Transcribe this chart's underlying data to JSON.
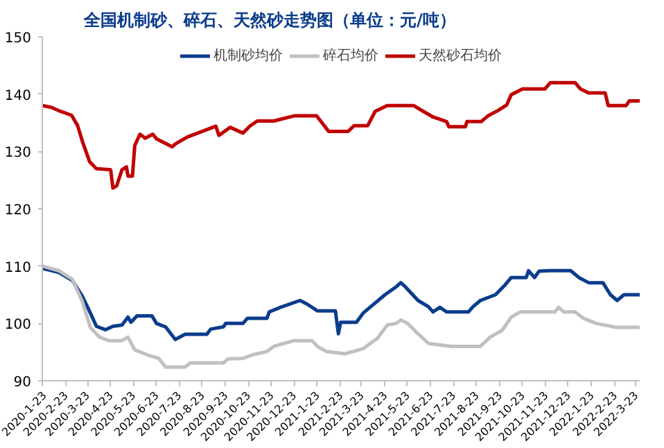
{
  "chart_data": {
    "type": "line",
    "title": "全国机制砂、碎石、天然砂走势图（单位：元/吨）",
    "ylim": [
      90,
      150
    ],
    "yticks": [
      90,
      100,
      110,
      120,
      130,
      140,
      150
    ],
    "xlim": [
      "2020-01-23",
      "2022-03-28"
    ],
    "xticks": [
      {
        "value": "2020-01-23",
        "label": "2020-1-23"
      },
      {
        "value": "2020-02-23",
        "label": "2020-2-23"
      },
      {
        "value": "2020-03-23",
        "label": "2020-3-23"
      },
      {
        "value": "2020-04-23",
        "label": "2020-4-23"
      },
      {
        "value": "2020-05-23",
        "label": "2020-5-23"
      },
      {
        "value": "2020-06-23",
        "label": "2020-6-23"
      },
      {
        "value": "2020-07-23",
        "label": "2020-7-23"
      },
      {
        "value": "2020-08-23",
        "label": "2020-8-23"
      },
      {
        "value": "2020-09-23",
        "label": "2020-9-23"
      },
      {
        "value": "2020-10-23",
        "label": "2020-10-23"
      },
      {
        "value": "2020-11-23",
        "label": "2020-11-23"
      },
      {
        "value": "2020-12-23",
        "label": "2020-12-23"
      },
      {
        "value": "2021-01-23",
        "label": "2021-1-23"
      },
      {
        "value": "2021-02-23",
        "label": "2021-2-23"
      },
      {
        "value": "2021-03-23",
        "label": "2021-3-23"
      },
      {
        "value": "2021-04-23",
        "label": "2021-4-23"
      },
      {
        "value": "2021-05-23",
        "label": "2021-5-23"
      },
      {
        "value": "2021-06-23",
        "label": "2021-6-23"
      },
      {
        "value": "2021-07-23",
        "label": "2021-7-23"
      },
      {
        "value": "2021-08-23",
        "label": "2021-8-23"
      },
      {
        "value": "2021-09-23",
        "label": "2021-9-23"
      },
      {
        "value": "2021-10-23",
        "label": "2021-10-23"
      },
      {
        "value": "2021-11-23",
        "label": "2021-11-23"
      },
      {
        "value": "2021-12-23",
        "label": "2021-12-23"
      },
      {
        "value": "2022-01-23",
        "label": "2022-1-23"
      },
      {
        "value": "2022-02-23",
        "label": "2022-2-23"
      },
      {
        "value": "2022-03-23",
        "label": "2022-3-23"
      }
    ],
    "grid": false,
    "legend": "top",
    "marker": "none",
    "line_style": "solid",
    "series": [
      {
        "name": "机制砂均价",
        "color": "#0b3c8c",
        "x": [
          "2020-01-23",
          "2020-02-14",
          "2020-03-03",
          "2020-03-16",
          "2020-03-27",
          "2020-04-04",
          "2020-04-16",
          "2020-04-26",
          "2020-05-08",
          "2020-05-16",
          "2020-05-20",
          "2020-05-28",
          "2020-06-17",
          "2020-06-23",
          "2020-07-05",
          "2020-07-18",
          "2020-07-31",
          "2020-08-29",
          "2020-09-03",
          "2020-09-20",
          "2020-09-23",
          "2020-10-16",
          "2020-10-22",
          "2020-11-17",
          "2020-11-20",
          "2020-12-05",
          "2020-12-31",
          "2021-01-09",
          "2021-01-23",
          "2021-02-16",
          "2021-02-20",
          "2021-02-23",
          "2021-03-16",
          "2021-03-25",
          "2021-04-13",
          "2021-04-23",
          "2021-05-08",
          "2021-05-14",
          "2021-05-20",
          "2021-06-06",
          "2021-06-20",
          "2021-06-26",
          "2021-07-05",
          "2021-07-14",
          "2021-08-12",
          "2021-08-18",
          "2021-08-28",
          "2021-09-17",
          "2021-09-29",
          "2021-10-08",
          "2021-10-28",
          "2021-10-31",
          "2021-11-08",
          "2021-11-14",
          "2021-11-29",
          "2021-12-26",
          "2022-01-06",
          "2022-01-19",
          "2022-02-07",
          "2022-02-17",
          "2022-02-26",
          "2022-03-07",
          "2022-03-28"
        ],
        "values": [
          109.6,
          108.9,
          107.5,
          104.8,
          101.8,
          99.5,
          98.9,
          99.5,
          99.7,
          101.1,
          100.2,
          101.3,
          101.3,
          100,
          99.4,
          97.2,
          98.1,
          98.1,
          99,
          99.4,
          100,
          100,
          100.9,
          100.9,
          102,
          102.8,
          104,
          103.4,
          102.2,
          102.2,
          98.2,
          100.2,
          100.2,
          101.8,
          103.9,
          105,
          106.4,
          107.1,
          106.4,
          104,
          102.9,
          102,
          102.8,
          102,
          102,
          102.9,
          104,
          105,
          106.6,
          108,
          108,
          109.2,
          108,
          109.1,
          109.2,
          109.2,
          108,
          107.1,
          107.1,
          105,
          104,
          105,
          105
        ]
      },
      {
        "name": "碎石均价",
        "color": "#c0c0c0",
        "x": [
          "2020-01-23",
          "2020-02-14",
          "2020-03-03",
          "2020-03-16",
          "2020-03-27",
          "2020-04-08",
          "2020-04-20",
          "2020-05-08",
          "2020-05-16",
          "2020-05-25",
          "2020-06-11",
          "2020-06-26",
          "2020-07-05",
          "2020-07-31",
          "2020-08-07",
          "2020-09-20",
          "2020-09-26",
          "2020-10-16",
          "2020-10-28",
          "2020-11-17",
          "2020-11-26",
          "2020-12-23",
          "2021-01-16",
          "2021-01-23",
          "2021-02-04",
          "2021-03-01",
          "2021-03-25",
          "2021-04-13",
          "2021-04-26",
          "2021-05-08",
          "2021-05-14",
          "2021-05-23",
          "2021-06-06",
          "2021-06-20",
          "2021-07-20",
          "2021-08-28",
          "2021-09-10",
          "2021-09-26",
          "2021-10-08",
          "2021-10-20",
          "2021-12-05",
          "2021-12-10",
          "2021-12-17",
          "2022-01-01",
          "2022-01-12",
          "2022-01-29",
          "2022-02-25",
          "2022-03-28"
        ],
        "values": [
          110,
          109.2,
          107.7,
          103.9,
          99.3,
          97.6,
          97,
          97,
          97.6,
          95.4,
          94.5,
          93.9,
          92.4,
          92.4,
          93.1,
          93.1,
          93.8,
          93.9,
          94.5,
          95.1,
          96,
          97,
          97,
          96,
          95.1,
          94.7,
          95.6,
          97.4,
          99.7,
          100,
          100.6,
          100,
          98.2,
          96.5,
          96,
          96,
          97.6,
          98.8,
          101.1,
          102,
          102,
          102.8,
          102,
          102,
          100.9,
          100,
          99.3,
          99.3
        ]
      },
      {
        "name": "天然砂石均价",
        "color": "#c00000",
        "x": [
          "2020-01-23",
          "2020-02-04",
          "2020-02-16",
          "2020-03-02",
          "2020-03-10",
          "2020-03-17",
          "2020-03-26",
          "2020-04-04",
          "2020-04-23",
          "2020-04-26",
          "2020-05-01",
          "2020-05-08",
          "2020-05-14",
          "2020-05-16",
          "2020-05-22",
          "2020-05-25",
          "2020-06-01",
          "2020-06-08",
          "2020-06-18",
          "2020-06-23",
          "2020-07-14",
          "2020-07-18",
          "2020-08-03",
          "2020-08-23",
          "2020-09-10",
          "2020-09-14",
          "2020-09-29",
          "2020-10-16",
          "2020-10-25",
          "2020-11-04",
          "2020-11-26",
          "2020-12-23",
          "2021-01-22",
          "2021-02-07",
          "2021-03-05",
          "2021-03-13",
          "2021-03-31",
          "2021-04-10",
          "2021-04-26",
          "2021-05-31",
          "2021-06-09",
          "2021-06-26",
          "2021-07-14",
          "2021-07-17",
          "2021-08-08",
          "2021-08-10",
          "2021-08-29",
          "2021-09-07",
          "2021-09-20",
          "2021-10-02",
          "2021-10-08",
          "2021-10-23",
          "2021-11-22",
          "2021-11-29",
          "2022-01-01",
          "2022-01-08",
          "2022-01-19",
          "2022-02-10",
          "2022-02-14",
          "2022-03-10",
          "2022-03-14",
          "2022-03-28"
        ],
        "values": [
          138,
          137.7,
          137,
          136.3,
          134.5,
          131.5,
          128.2,
          127,
          126.8,
          123.6,
          124,
          126.8,
          127.3,
          125.7,
          125.7,
          131,
          133,
          132.3,
          133,
          132.2,
          130.8,
          131.3,
          132.5,
          133.5,
          134.4,
          132.8,
          134.2,
          133.2,
          134.4,
          135.3,
          135.3,
          136.2,
          136.2,
          133.5,
          133.5,
          134.5,
          134.5,
          137,
          138,
          138,
          137.3,
          136,
          135.2,
          134.3,
          134.3,
          135.2,
          135.2,
          136.2,
          137.1,
          138.1,
          139.9,
          140.9,
          140.9,
          142,
          142,
          140.9,
          140.2,
          140.2,
          138,
          138,
          138.8,
          138.8
        ]
      }
    ]
  }
}
